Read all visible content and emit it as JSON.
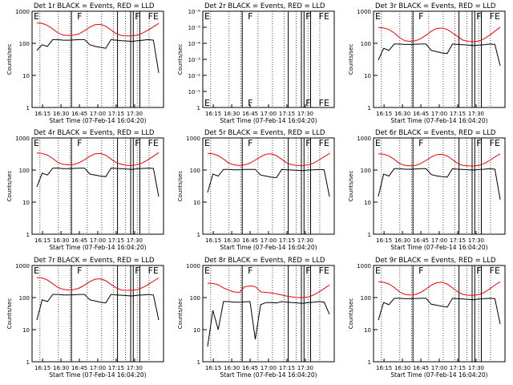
{
  "chart_data": [
    {
      "type": "line",
      "title": "Det 1r BLACK = Events, RED = LLD",
      "xlabel": "Start Time (07-Feb-14 16:04:20)",
      "ylabel": "Counts/sec",
      "yscale": "log",
      "ylim": [
        1,
        1000
      ],
      "ytick_labels": [
        "1",
        "10",
        "100",
        "1000"
      ],
      "xtick_labels": [
        "16:15",
        "16:30",
        "16:45",
        "17:00",
        "17:15",
        "17:30"
      ],
      "flags": [
        {
          "t": "E",
          "x": 0.0
        },
        {
          "t": "F",
          "x": 0.33
        },
        {
          "t": "F",
          "x": 0.77
        },
        {
          "t": "FE",
          "x": 0.87
        }
      ],
      "series": [
        {
          "name": "RED = LLD",
          "color": "#ff0000",
          "values": [
            430,
            420,
            360,
            280,
            210,
            180,
            175,
            180,
            200,
            250,
            320,
            380,
            390,
            340,
            260,
            200,
            175,
            170,
            172,
            180,
            210,
            260,
            330,
            420
          ]
        },
        {
          "name": "BLACK = Events",
          "color": "#000000",
          "values": [
            60,
            90,
            80,
            130,
            130,
            125,
            125,
            128,
            130,
            130,
            90,
            80,
            75,
            70,
            130,
            125,
            120,
            118,
            115,
            120,
            125,
            130,
            125,
            12
          ]
        }
      ]
    },
    {
      "type": "line",
      "title": "Det 2r BLACK = Events, RED = LLD",
      "xlabel": "Start Time (07-Feb-14 16:04:20)",
      "ylabel": "Counts/sec",
      "yscale": "log",
      "ylim": [
        1,
        1e-06
      ],
      "ytick_labels": [
        "1",
        "10⁻¹",
        "10⁻²",
        "10⁻³",
        "10⁻⁴",
        "10⁻⁵",
        "10⁻⁶"
      ],
      "xtick_labels": [
        "16:15",
        "16:30",
        "16:45",
        "17:00",
        "17:15",
        "17:30"
      ],
      "flags": [
        {
          "t": "E",
          "x": 0.0
        },
        {
          "t": "F",
          "x": 0.33
        },
        {
          "t": "F",
          "x": 0.77
        },
        {
          "t": "FE",
          "x": 0.87
        }
      ],
      "series": []
    },
    {
      "type": "line",
      "title": "Det 3r BLACK = Events, RED = LLD",
      "xlabel": "Start Time (07-Feb-14 16:04:20)",
      "ylabel": "Counts/sec",
      "yscale": "log",
      "ylim": [
        1,
        1000
      ],
      "ytick_labels": [
        "1",
        "10",
        "100",
        "1000"
      ],
      "xtick_labels": [
        "16:15",
        "16:30",
        "16:45",
        "17:00",
        "17:15",
        "17:30"
      ],
      "flags": [
        {
          "t": "E",
          "x": 0.0
        },
        {
          "t": "F",
          "x": 0.33
        },
        {
          "t": "F",
          "x": 0.77
        },
        {
          "t": "FE",
          "x": 0.87
        }
      ],
      "series": [
        {
          "name": "RED = LLD",
          "color": "#ff0000",
          "values": [
            310,
            300,
            270,
            210,
            150,
            120,
            115,
            120,
            140,
            180,
            240,
            290,
            300,
            270,
            210,
            160,
            125,
            115,
            112,
            118,
            140,
            180,
            240,
            320
          ]
        },
        {
          "name": "BLACK = Events",
          "color": "#000000",
          "values": [
            30,
            70,
            60,
            95,
            95,
            92,
            92,
            94,
            95,
            95,
            60,
            55,
            50,
            48,
            95,
            92,
            90,
            88,
            85,
            88,
            90,
            95,
            92,
            20
          ]
        }
      ]
    },
    {
      "type": "line",
      "title": "Det 4r BLACK = Events, RED = LLD",
      "xlabel": "Start Time (07-Feb-14 16:04:20)",
      "ylabel": "Counts/sec",
      "yscale": "log",
      "ylim": [
        1,
        1000
      ],
      "ytick_labels": [
        "1",
        "10",
        "100",
        "1000"
      ],
      "xtick_labels": [
        "16:15",
        "16:30",
        "16:45",
        "17:00",
        "17:15",
        "17:30"
      ],
      "flags": [
        {
          "t": "E",
          "x": 0.0
        },
        {
          "t": "F",
          "x": 0.33
        },
        {
          "t": "F",
          "x": 0.77
        },
        {
          "t": "FE",
          "x": 0.87
        }
      ],
      "series": [
        {
          "name": "RED = LLD",
          "color": "#ff0000",
          "values": [
            340,
            330,
            290,
            230,
            170,
            150,
            145,
            150,
            170,
            210,
            270,
            320,
            330,
            290,
            220,
            170,
            150,
            140,
            140,
            148,
            170,
            210,
            270,
            350
          ]
        },
        {
          "name": "BLACK = Events",
          "color": "#000000",
          "values": [
            30,
            80,
            70,
            115,
            115,
            110,
            110,
            112,
            115,
            115,
            75,
            70,
            65,
            62,
            115,
            112,
            110,
            108,
            105,
            110,
            112,
            115,
            112,
            15
          ]
        }
      ]
    },
    {
      "type": "line",
      "title": "Det 5r BLACK = Events, RED = LLD",
      "xlabel": "Start Time (07-Feb-14 16:04:20)",
      "ylabel": "Counts/sec",
      "yscale": "log",
      "ylim": [
        1,
        1000
      ],
      "ytick_labels": [
        "1",
        "10",
        "100",
        "1000"
      ],
      "xtick_labels": [
        "16:15",
        "16:30",
        "16:45",
        "17:00",
        "17:15",
        "17:30"
      ],
      "flags": [
        {
          "t": "E",
          "x": 0.0
        },
        {
          "t": "F",
          "x": 0.33
        },
        {
          "t": "F",
          "x": 0.77
        },
        {
          "t": "FE",
          "x": 0.87
        }
      ],
      "series": [
        {
          "name": "RED = LLD",
          "color": "#ff0000",
          "values": [
            330,
            320,
            280,
            220,
            165,
            145,
            140,
            145,
            165,
            205,
            260,
            310,
            320,
            280,
            215,
            165,
            145,
            138,
            138,
            145,
            165,
            205,
            260,
            330
          ]
        },
        {
          "name": "BLACK = Events",
          "color": "#000000",
          "values": [
            20,
            75,
            65,
            105,
            105,
            102,
            102,
            104,
            105,
            105,
            70,
            65,
            60,
            58,
            105,
            102,
            100,
            98,
            96,
            100,
            102,
            105,
            102,
            15
          ]
        }
      ]
    },
    {
      "type": "line",
      "title": "Det 6r BLACK = Events, RED = LLD",
      "xlabel": "Start Time (07-Feb-14 16:04:20)",
      "ylabel": "Counts/sec",
      "yscale": "log",
      "ylim": [
        1,
        1000
      ],
      "ytick_labels": [
        "1",
        "10",
        "100",
        "1000"
      ],
      "xtick_labels": [
        "16:15",
        "16:30",
        "16:45",
        "17:00",
        "17:15",
        "17:30"
      ],
      "flags": [
        {
          "t": "E",
          "x": 0.0
        },
        {
          "t": "F",
          "x": 0.33
        },
        {
          "t": "F",
          "x": 0.77
        },
        {
          "t": "FE",
          "x": 0.87
        }
      ],
      "series": [
        {
          "name": "RED = LLD",
          "color": "#ff0000",
          "values": [
            320,
            310,
            275,
            215,
            160,
            140,
            135,
            140,
            160,
            200,
            255,
            300,
            310,
            275,
            210,
            160,
            140,
            134,
            134,
            140,
            160,
            200,
            255,
            320
          ]
        },
        {
          "name": "BLACK = Events",
          "color": "#000000",
          "values": [
            15,
            75,
            65,
            110,
            110,
            106,
            106,
            108,
            110,
            110,
            72,
            66,
            62,
            60,
            110,
            106,
            104,
            102,
            100,
            104,
            106,
            110,
            106,
            12
          ]
        }
      ]
    },
    {
      "type": "line",
      "title": "Det 7r BLACK = Events, RED = LLD",
      "xlabel": "Start Time (07-Feb-14 16:04:20)",
      "ylabel": "Counts/sec",
      "yscale": "log",
      "ylim": [
        1,
        1000
      ],
      "ytick_labels": [
        "1",
        "10",
        "100",
        "1000"
      ],
      "xtick_labels": [
        "16:15",
        "16:30",
        "16:45",
        "17:00",
        "17:15",
        "17:30"
      ],
      "flags": [
        {
          "t": "E",
          "x": 0.0
        },
        {
          "t": "F",
          "x": 0.33
        },
        {
          "t": "F",
          "x": 0.77
        },
        {
          "t": "FE",
          "x": 0.87
        }
      ],
      "series": [
        {
          "name": "RED = LLD",
          "color": "#ff0000",
          "values": [
            420,
            410,
            350,
            270,
            205,
            180,
            172,
            178,
            198,
            245,
            315,
            375,
            385,
            335,
            255,
            198,
            172,
            168,
            170,
            178,
            208,
            255,
            325,
            410
          ]
        },
        {
          "name": "BLACK = Events",
          "color": "#000000",
          "values": [
            20,
            85,
            75,
            125,
            125,
            120,
            120,
            122,
            125,
            125,
            85,
            78,
            72,
            68,
            125,
            120,
            118,
            115,
            112,
            118,
            120,
            125,
            120,
            20
          ]
        }
      ]
    },
    {
      "type": "line",
      "title": "Det 8r BLACK = Events, RED = LLD",
      "xlabel": "Start Time (07-Feb-14 16:04:20)",
      "ylabel": "Counts/sec",
      "yscale": "log",
      "ylim": [
        1,
        1000
      ],
      "ytick_labels": [
        "1",
        "10",
        "100",
        "1000"
      ],
      "xtick_labels": [
        "16:15",
        "16:30",
        "16:45",
        "17:00",
        "17:15",
        "17:30"
      ],
      "flags": [
        {
          "t": "E",
          "x": 0.0
        },
        {
          "t": "F",
          "x": 0.33
        },
        {
          "t": "F",
          "x": 0.77
        },
        {
          "t": "FE",
          "x": 0.87
        }
      ],
      "series": [
        {
          "name": "RED = LLD",
          "color": "#ff0000",
          "values": [
            280,
            275,
            250,
            200,
            170,
            150,
            145,
            220,
            230,
            220,
            150,
            145,
            140,
            130,
            120,
            110,
            105,
            100,
            100,
            105,
            120,
            150,
            190,
            250
          ]
        },
        {
          "name": "BLACK = Events",
          "color": "#000000",
          "values": [
            3,
            40,
            10,
            75,
            75,
            72,
            72,
            74,
            75,
            5,
            60,
            70,
            70,
            68,
            75,
            72,
            70,
            68,
            66,
            70,
            72,
            75,
            72,
            30
          ]
        }
      ]
    },
    {
      "type": "line",
      "title": "Det 9r BLACK = Events, RED = LLD",
      "xlabel": "Start Time (07-Feb-14 16:04:20)",
      "ylabel": "Counts/sec",
      "yscale": "log",
      "ylim": [
        1,
        1000
      ],
      "ytick_labels": [
        "1",
        "10",
        "100",
        "1000"
      ],
      "xtick_labels": [
        "16:15",
        "16:30",
        "16:45",
        "17:00",
        "17:15",
        "17:30"
      ],
      "flags": [
        {
          "t": "E",
          "x": 0.0
        },
        {
          "t": "F",
          "x": 0.33
        },
        {
          "t": "F",
          "x": 0.77
        },
        {
          "t": "FE",
          "x": 0.87
        }
      ],
      "series": [
        {
          "name": "RED = LLD",
          "color": "#ff0000",
          "values": [
            310,
            300,
            265,
            205,
            150,
            125,
            120,
            125,
            145,
            185,
            245,
            290,
            300,
            265,
            200,
            150,
            125,
            118,
            118,
            125,
            145,
            185,
            245,
            310
          ]
        },
        {
          "name": "BLACK = Events",
          "color": "#000000",
          "values": [
            20,
            70,
            60,
            95,
            95,
            92,
            92,
            94,
            95,
            95,
            62,
            58,
            54,
            50,
            95,
            92,
            90,
            88,
            86,
            90,
            92,
            95,
            92,
            15
          ]
        }
      ]
    }
  ]
}
